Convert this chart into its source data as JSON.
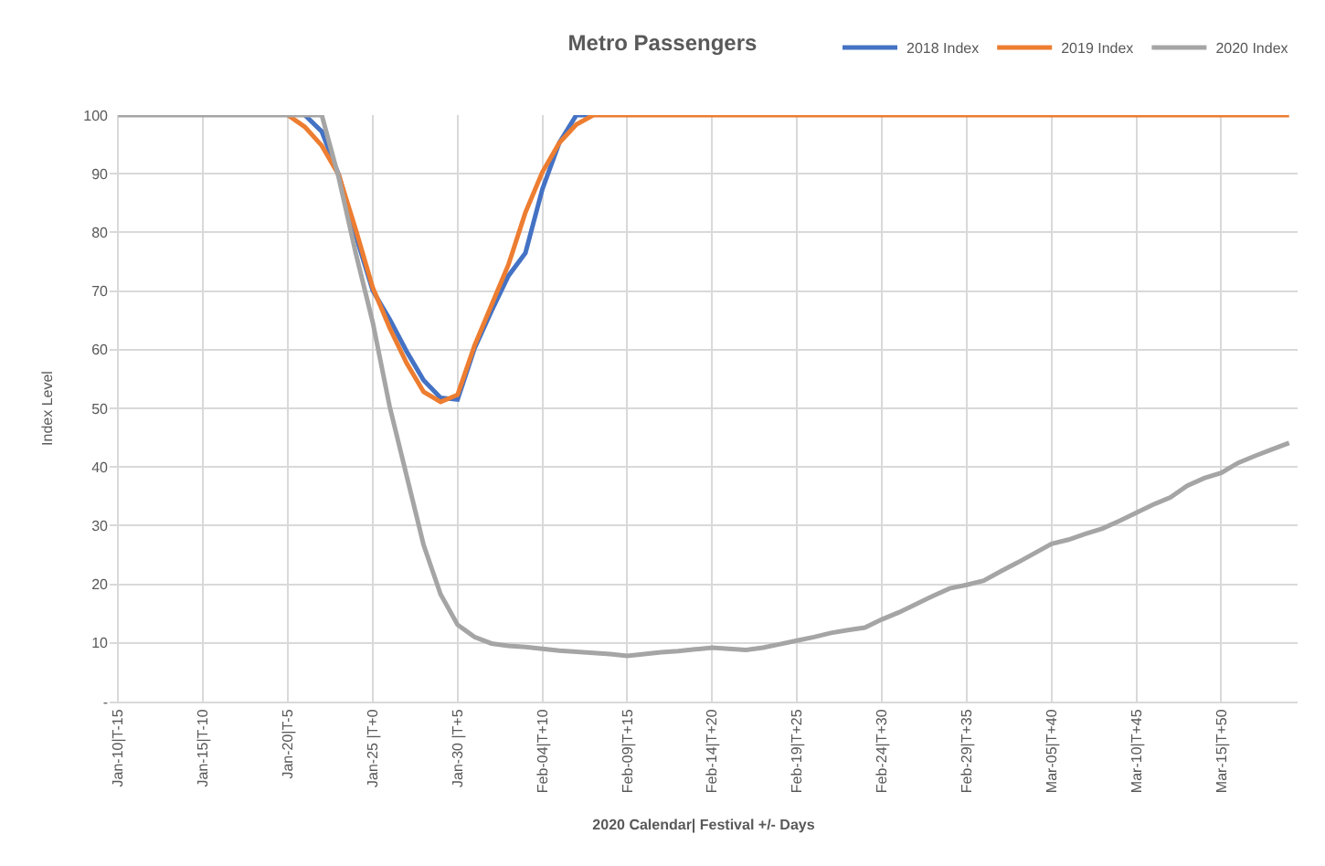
{
  "chart_data": {
    "type": "line",
    "title": "Metro Passengers",
    "xlabel": "2020 Calendar| Festival +/- Days",
    "ylabel": "Index Level",
    "categories": [
      "Jan-10|T-15",
      null,
      null,
      null,
      null,
      "Jan-15|T-10",
      null,
      null,
      null,
      null,
      "Jan-20|T-5",
      null,
      null,
      null,
      null,
      "Jan-25 |T+0",
      null,
      null,
      null,
      null,
      "Jan-30 |T+5",
      null,
      null,
      null,
      null,
      "Feb-04|T+10",
      null,
      null,
      null,
      null,
      "Feb-09|T+15",
      null,
      null,
      null,
      null,
      "Feb-14|T+20",
      null,
      null,
      null,
      null,
      "Feb-19|T+25",
      null,
      null,
      null,
      null,
      "Feb-24|T+30",
      null,
      null,
      null,
      null,
      "Feb-29|T+35",
      null,
      null,
      null,
      null,
      "Mar-05|T+40",
      null,
      null,
      null,
      null,
      "Mar-10|T+45",
      null,
      null,
      null,
      null,
      "Mar-15|T+50",
      null,
      null,
      null,
      null
    ],
    "series": [
      {
        "name": "2018 Index",
        "color": "#4472c4",
        "values": [
          null,
          null,
          null,
          null,
          null,
          null,
          null,
          null,
          null,
          null,
          null,
          100,
          97.2,
          89.8,
          79.5,
          70.1,
          65.2,
          59.7,
          54.8,
          51.8,
          51.5,
          60.2,
          66.6,
          72.6,
          76.5,
          87.4,
          95.3,
          100,
          100,
          null,
          null,
          null,
          null,
          null,
          null,
          null,
          null,
          null,
          null,
          null,
          null,
          null,
          null,
          null,
          null,
          null,
          null,
          null,
          null,
          null,
          null,
          null,
          null,
          null,
          null,
          null,
          null,
          null,
          null,
          null,
          null,
          null,
          null,
          null,
          null,
          null,
          null,
          null,
          null,
          null
        ]
      },
      {
        "name": "2019 Index",
        "color": "#ed7d31",
        "values": [
          null,
          null,
          null,
          null,
          null,
          null,
          null,
          null,
          null,
          null,
          100,
          98,
          94.8,
          89.8,
          80.5,
          70.6,
          63.7,
          57.7,
          52.8,
          51.1,
          52.3,
          60.7,
          67.6,
          74.5,
          83.4,
          90.3,
          95.3,
          98.4,
          100,
          100,
          100,
          100,
          100,
          100,
          100,
          100,
          100,
          100,
          100,
          100,
          100,
          100,
          100,
          100,
          100,
          100,
          100,
          100,
          100,
          100,
          100,
          100,
          100,
          100,
          100,
          100,
          100,
          100,
          100,
          100,
          100,
          100,
          100,
          100,
          100,
          100,
          100,
          100,
          100,
          100
        ]
      },
      {
        "name": "2020 Index",
        "color": "#a5a5a5",
        "values": [
          100,
          100,
          100,
          100,
          100,
          100,
          100,
          100,
          100,
          100,
          100,
          100,
          100,
          89.3,
          76.5,
          64.7,
          50.3,
          38.5,
          26.7,
          18.3,
          13.1,
          11.0,
          9.9,
          9.5,
          9.3,
          9.0,
          8.7,
          8.5,
          8.3,
          8.1,
          7.8,
          8.1,
          8.4,
          8.6,
          8.9,
          9.2,
          9.0,
          8.8,
          9.2,
          9.8,
          10.4,
          11.0,
          11.7,
          12.2,
          12.6,
          14.0,
          15.2,
          16.6,
          18.0,
          19.3,
          19.9,
          20.6,
          22.2,
          23.7,
          25.3,
          26.9,
          27.6,
          28.6,
          29.5,
          30.8,
          32.2,
          33.6,
          34.8,
          36.8,
          38.1,
          39.0,
          40.7,
          41.9,
          43.0,
          44.1
        ]
      }
    ],
    "ylim": [
      0,
      100
    ],
    "yticks": [
      {
        "value": 0,
        "label": "-"
      },
      10,
      20,
      30,
      40,
      50,
      60,
      70,
      80,
      90,
      100
    ],
    "grid": true,
    "legend": "top right",
    "marker": "none",
    "line_style": "solid"
  }
}
